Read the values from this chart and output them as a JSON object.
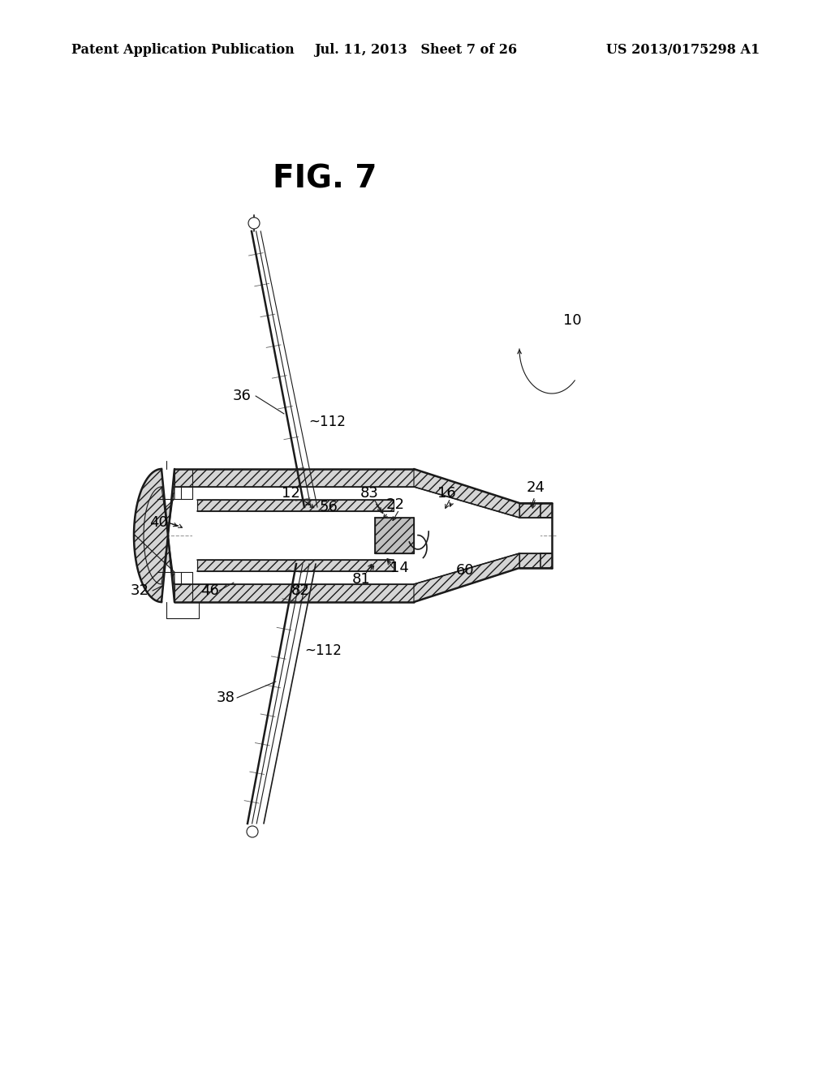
{
  "background_color": "#ffffff",
  "header_left": "Patent Application Publication",
  "header_mid": "Jul. 11, 2013   Sheet 7 of 26",
  "header_right": "US 2013/0175298 A1",
  "fig_label": "FIG. 7",
  "line_color": "#1a1a1a",
  "label_fontsize": 13,
  "header_fontsize": 11.5,
  "fig_label_fontsize": 28
}
